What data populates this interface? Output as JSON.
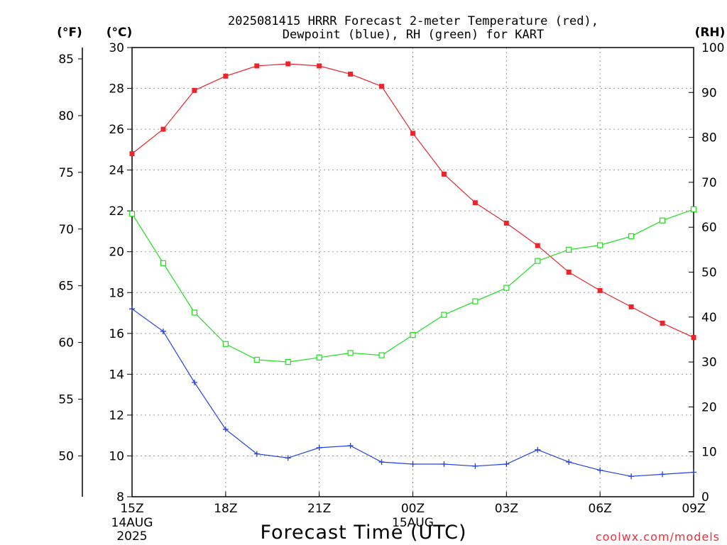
{
  "chart_data": {
    "type": "line",
    "title": [
      "2025081415 HRRR Forecast 2-meter Temperature (red),",
      "Dewpoint (blue), RH (green) for KART"
    ],
    "xlabel": "Forecast Time (UTC)",
    "credit": "coolwx.com/models",
    "unit_labels": {
      "fahrenheit": "(°F)",
      "celsius": "(°C)",
      "rh": "(RH)"
    },
    "x_ticks": [
      "15Z",
      "18Z",
      "21Z",
      "00Z",
      "03Z",
      "06Z",
      "09Z"
    ],
    "x_tick_hours": [
      0,
      3,
      6,
      9,
      12,
      15,
      18
    ],
    "date_labels": [
      {
        "hour": 0,
        "lines": [
          "14AUG",
          "2025"
        ]
      },
      {
        "hour": 9,
        "lines": [
          "15AUG"
        ]
      }
    ],
    "x_hours": [
      0,
      1,
      2,
      3,
      4,
      5,
      6,
      7,
      8,
      9,
      10,
      11,
      12,
      13,
      14,
      15,
      16,
      17,
      18
    ],
    "celsius_axis": {
      "min": 8,
      "max": 30,
      "ticks": [
        8,
        10,
        12,
        14,
        16,
        18,
        20,
        22,
        24,
        26,
        28,
        30
      ]
    },
    "fahrenheit_axis": {
      "ticks": [
        50,
        55,
        60,
        65,
        70,
        75,
        80,
        85
      ]
    },
    "rh_axis": {
      "min": 0,
      "max": 100,
      "ticks": [
        0,
        10,
        20,
        30,
        40,
        50,
        60,
        70,
        80,
        90,
        100
      ]
    },
    "grid": true,
    "series": [
      {
        "name": "Temperature (red)",
        "color": "#e8262c",
        "marker": "filled-square",
        "axis": "celsius",
        "values": [
          24.8,
          26.0,
          27.9,
          28.6,
          29.1,
          29.2,
          29.1,
          28.7,
          28.1,
          25.8,
          23.8,
          22.4,
          21.4,
          20.3,
          19.0,
          18.1,
          17.3,
          16.5,
          15.8
        ]
      },
      {
        "name": "Dewpoint (blue)",
        "color": "#2040e8",
        "marker": "plus",
        "axis": "celsius",
        "values": [
          17.2,
          16.1,
          13.6,
          11.3,
          10.1,
          9.9,
          10.4,
          10.5,
          9.7,
          9.6,
          9.6,
          9.5,
          9.6,
          10.3,
          9.7,
          9.3,
          9.0,
          9.1,
          9.2
        ]
      },
      {
        "name": "RH (green)",
        "color": "#22dd22",
        "marker": "open-square",
        "axis": "rh",
        "values": [
          63,
          52,
          41,
          34,
          30.5,
          30,
          31,
          32,
          31.5,
          36,
          40.5,
          43.5,
          46.5,
          52.5,
          55,
          56,
          58,
          61.5,
          64
        ]
      }
    ]
  }
}
